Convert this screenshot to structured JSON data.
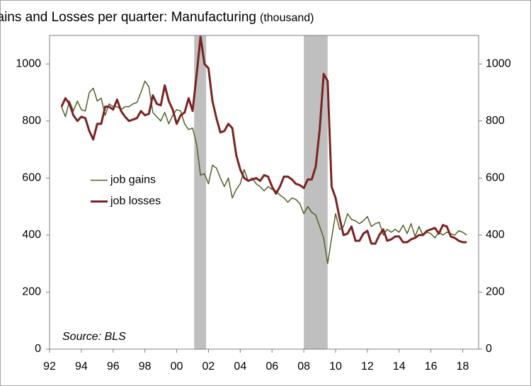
{
  "chart_data": {
    "type": "line",
    "title": "Gross Jobs Gains and Losses per quarter: Manufacturing",
    "title_unit": "(thousand)",
    "annotation": "Source: BLS",
    "legend": "center left",
    "xlim": [
      1992,
      2019
    ],
    "xticks": [
      {
        "value": 1992,
        "label": "92"
      },
      {
        "value": 1994,
        "label": "94"
      },
      {
        "value": 1996,
        "label": "96"
      },
      {
        "value": 1998,
        "label": "98"
      },
      {
        "value": 2000,
        "label": "00"
      },
      {
        "value": 2002,
        "label": "02"
      },
      {
        "value": 2004,
        "label": "04"
      },
      {
        "value": 2006,
        "label": "06"
      },
      {
        "value": 2008,
        "label": "08"
      },
      {
        "value": 2010,
        "label": "10"
      },
      {
        "value": 2012,
        "label": "12"
      },
      {
        "value": 2014,
        "label": "14"
      },
      {
        "value": 2016,
        "label": "16"
      },
      {
        "value": 2018,
        "label": "18"
      }
    ],
    "ylim": [
      0,
      1100
    ],
    "yticks": [
      0,
      200,
      400,
      600,
      800,
      1000
    ],
    "y2lim": [
      0,
      1100
    ],
    "y2ticks": [
      0,
      200,
      400,
      600,
      800,
      1000
    ],
    "recessions": [
      [
        2001.1,
        2001.85
      ],
      [
        2008.0,
        2009.5
      ]
    ],
    "recession_color": "#bfbfbf",
    "x": [
      1992.75,
      1993,
      1993.25,
      1993.5,
      1993.75,
      1994,
      1994.25,
      1994.5,
      1994.75,
      1995,
      1995.25,
      1995.5,
      1995.75,
      1996,
      1996.25,
      1996.5,
      1996.75,
      1997,
      1997.25,
      1997.5,
      1997.75,
      1998,
      1998.25,
      1998.5,
      1998.75,
      1999,
      1999.25,
      1999.5,
      1999.75,
      2000,
      2000.25,
      2000.5,
      2000.75,
      2001,
      2001.25,
      2001.5,
      2001.75,
      2002,
      2002.25,
      2002.5,
      2002.75,
      2003,
      2003.25,
      2003.5,
      2003.75,
      2004,
      2004.25,
      2004.5,
      2004.75,
      2005,
      2005.25,
      2005.5,
      2005.75,
      2006,
      2006.25,
      2006.5,
      2006.75,
      2007,
      2007.25,
      2007.5,
      2007.75,
      2008,
      2008.25,
      2008.5,
      2008.75,
      2009,
      2009.25,
      2009.5,
      2009.75,
      2010,
      2010.25,
      2010.5,
      2010.75,
      2011,
      2011.25,
      2011.5,
      2011.75,
      2012,
      2012.25,
      2012.5,
      2012.75,
      2013,
      2013.25,
      2013.5,
      2013.75,
      2014,
      2014.25,
      2014.5,
      2014.75,
      2015,
      2015.25,
      2015.5,
      2015.75,
      2016,
      2016.25,
      2016.5,
      2016.75,
      2017,
      2017.25,
      2017.5,
      2017.75,
      2018,
      2018.25
    ],
    "series": [
      {
        "name": "job gains",
        "color": "#4f6228",
        "width": 1.5,
        "values": [
          850,
          815,
          870,
          835,
          870,
          840,
          835,
          900,
          915,
          870,
          880,
          820,
          860,
          850,
          850,
          840,
          850,
          850,
          860,
          865,
          900,
          940,
          920,
          830,
          815,
          800,
          830,
          790,
          820,
          840,
          835,
          790,
          770,
          775,
          720,
          610,
          615,
          580,
          645,
          635,
          600,
          570,
          600,
          530,
          560,
          580,
          630,
          590,
          600,
          580,
          570,
          555,
          570,
          560,
          555,
          540,
          530,
          515,
          530,
          525,
          510,
          475,
          500,
          480,
          470,
          430,
          390,
          300,
          390,
          475,
          420,
          430,
          475,
          455,
          450,
          440,
          450,
          465,
          430,
          440,
          445,
          400,
          420,
          410,
          420,
          410,
          435,
          405,
          440,
          395,
          430,
          400,
          410,
          405,
          390,
          410,
          400,
          410,
          405,
          400,
          415,
          410,
          400
        ]
      },
      {
        "name": "job losses",
        "color": "#7b2323",
        "width": 3,
        "values": [
          850,
          880,
          860,
          820,
          800,
          815,
          810,
          765,
          735,
          790,
          790,
          850,
          850,
          840,
          875,
          835,
          815,
          800,
          805,
          810,
          835,
          820,
          825,
          890,
          860,
          855,
          925,
          870,
          840,
          790,
          820,
          830,
          880,
          835,
          960,
          1095,
          1000,
          985,
          870,
          810,
          760,
          765,
          790,
          775,
          680,
          630,
          600,
          590,
          595,
          600,
          590,
          610,
          605,
          570,
          545,
          570,
          605,
          605,
          595,
          580,
          575,
          565,
          595,
          595,
          640,
          770,
          965,
          940,
          570,
          530,
          460,
          400,
          405,
          430,
          380,
          380,
          405,
          415,
          370,
          370,
          400,
          420,
          380,
          385,
          395,
          395,
          375,
          375,
          385,
          390,
          400,
          400,
          415,
          420,
          425,
          405,
          435,
          430,
          395,
          390,
          380,
          375,
          375
        ]
      }
    ]
  }
}
